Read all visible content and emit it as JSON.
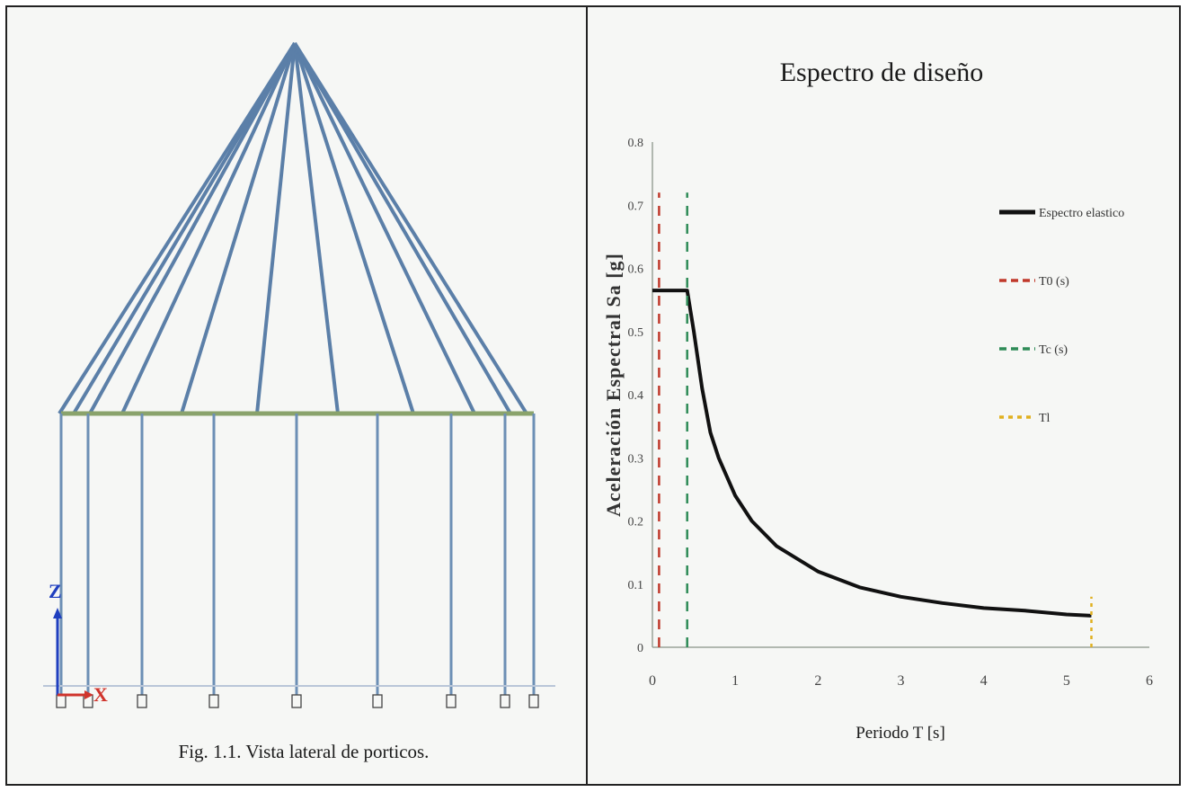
{
  "left": {
    "caption": "Fig. 1.1. Vista lateral de porticos.",
    "axis_z": "Z",
    "axis_x": "X"
  },
  "chart_data": {
    "type": "line",
    "title": "Espectro de diseño",
    "xlabel": "Periodo T [s]",
    "ylabel": "Aceleración Espectral Sa [g]",
    "xlim": [
      0,
      6
    ],
    "ylim": [
      0,
      0.8
    ],
    "xticks": [
      "0",
      "1",
      "2",
      "3",
      "4",
      "5",
      "6"
    ],
    "yticks": [
      "0",
      "0.1",
      "0.2",
      "0.3",
      "0.4",
      "0.5",
      "0.6",
      "0.7",
      "0.8"
    ],
    "grid": false,
    "legend_position": "right",
    "series": [
      {
        "name": "Espectro elastico",
        "color": "#111111",
        "style": "solid",
        "x": [
          0.0,
          0.1,
          0.2,
          0.3,
          0.42,
          0.5,
          0.6,
          0.7,
          0.8,
          1.0,
          1.2,
          1.5,
          2.0,
          2.5,
          3.0,
          3.5,
          4.0,
          4.5,
          5.0,
          5.3
        ],
        "y": [
          0.565,
          0.565,
          0.565,
          0.565,
          0.565,
          0.5,
          0.41,
          0.34,
          0.3,
          0.24,
          0.2,
          0.16,
          0.12,
          0.095,
          0.08,
          0.07,
          0.062,
          0.058,
          0.052,
          0.05
        ]
      },
      {
        "name": "T0 (s)",
        "color": "#c0392b",
        "style": "dashed",
        "x": [
          0.08,
          0.08
        ],
        "y": [
          0,
          0.72
        ]
      },
      {
        "name": "Tc (s)",
        "color": "#2e8b57",
        "style": "dashed",
        "x": [
          0.42,
          0.42
        ],
        "y": [
          0,
          0.72
        ]
      },
      {
        "name": "Tl",
        "color": "#e0b020",
        "style": "dotted",
        "x": [
          5.3,
          5.3
        ],
        "y": [
          0,
          0.08
        ]
      }
    ]
  }
}
